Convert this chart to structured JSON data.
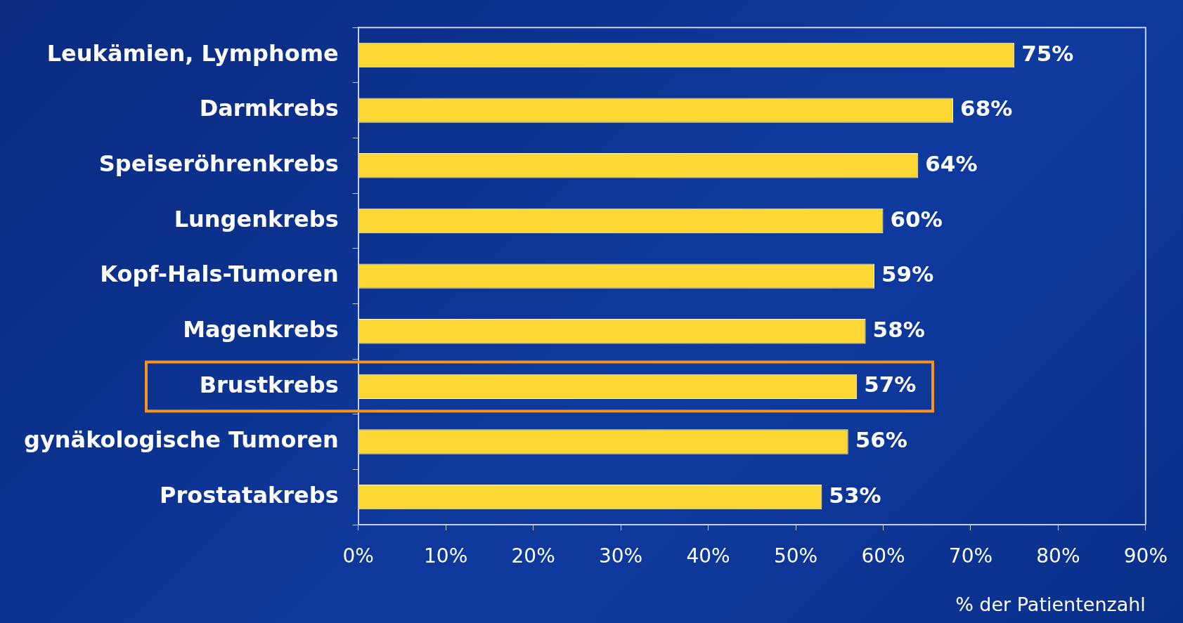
{
  "chart_data": {
    "type": "bar",
    "orientation": "horizontal",
    "xlabel": "% der Patientenzahl",
    "categories": [
      "Leukämien, Lymphome",
      "Darmkrebs",
      "Speiseröhrenkrebs",
      "Lungenkrebs",
      "Kopf-Hals-Tumoren",
      "Magenkrebs",
      "Brustkrebs",
      "gynäkologische Tumoren",
      "Prostatakrebs"
    ],
    "values": [
      75,
      68,
      64,
      60,
      59,
      58,
      57,
      56,
      53
    ],
    "value_labels": [
      "75%",
      "68%",
      "64%",
      "60%",
      "59%",
      "58%",
      "57%",
      "56%",
      "53%"
    ],
    "color": "#fdd835",
    "xlim": [
      0,
      90
    ],
    "xticks": [
      {
        "value": 0,
        "label": "0%"
      },
      {
        "value": 10,
        "label": "10%"
      },
      {
        "value": 20,
        "label": "20%"
      },
      {
        "value": 30,
        "label": "30%"
      },
      {
        "value": 40,
        "label": "40%"
      },
      {
        "value": 50,
        "label": "50%"
      },
      {
        "value": 60,
        "label": "60%"
      },
      {
        "value": 70,
        "label": "70%"
      },
      {
        "value": 80,
        "label": "80%"
      },
      {
        "value": 90,
        "label": "90%"
      }
    ],
    "grid": false,
    "legend": false
  }
}
